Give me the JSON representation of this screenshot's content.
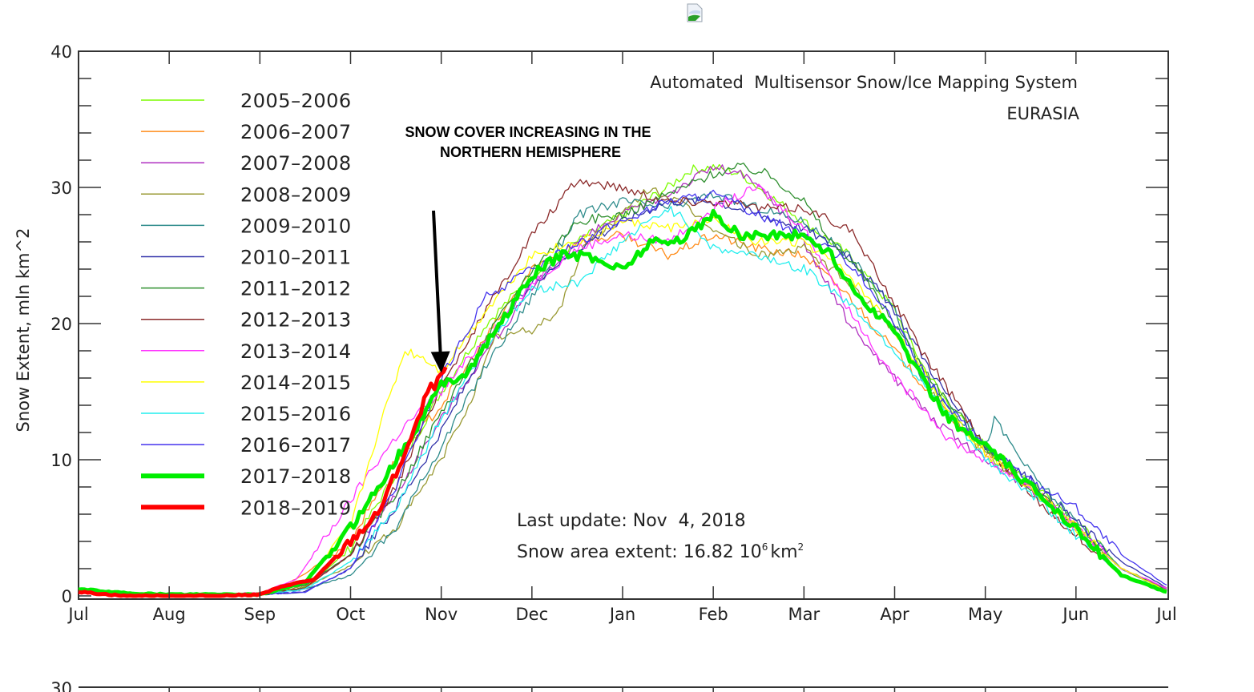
{
  "header": {
    "broken_image_icon": "broken-image-icon"
  },
  "chart_data": {
    "type": "line",
    "title": "Automated  Multisensor Snow/Ice Mapping System",
    "subtitle": "EURASIA",
    "xlabel": "",
    "ylabel": "Snow Extent, mln km^2",
    "ylim": [
      0,
      40
    ],
    "yticks": [
      0,
      10,
      20,
      30,
      40
    ],
    "ytick_labels": [
      "0",
      "10",
      "20",
      "30",
      "40"
    ],
    "xlim": [
      0,
      12
    ],
    "x_units": "months since Jul 1",
    "xticks": [
      0,
      1,
      2,
      3,
      4,
      5,
      6,
      7,
      8,
      9,
      10,
      11,
      12
    ],
    "xtick_labels": [
      "Jul",
      "Aug",
      "Sep",
      "Oct",
      "Nov",
      "Dec",
      "Jan",
      "Feb",
      "Mar",
      "Apr",
      "May",
      "Jun",
      "Jul"
    ],
    "grid": false,
    "legend_position": "top-left",
    "annotation": {
      "text_line1": "SNOW COVER INCREASING IN THE",
      "text_line2": "NORTHERN HEMISPHERE",
      "arrow_target": [
        4.0,
        16.5
      ]
    },
    "info": {
      "last_update": "Last update: Nov  4, 2018",
      "extent_prefix": "Snow area extent: 16.82 10",
      "extent_exp": "6",
      "extent_unit": "km",
      "extent_unit_exp": "2"
    },
    "series": [
      {
        "name": "2005-2006",
        "color": "#7cfc00",
        "width": 1.3,
        "x": [
          0,
          1,
          2,
          2.5,
          3,
          3.5,
          4,
          4.5,
          5,
          5.5,
          6,
          6.5,
          6.75,
          7,
          7.3,
          7.6,
          8,
          8.5,
          9,
          9.3,
          9.6,
          10,
          10.5,
          11,
          11.5,
          12
        ],
        "y": [
          0.5,
          0.1,
          0.1,
          0.6,
          3.5,
          9,
          15,
          20,
          23.5,
          26,
          28,
          30,
          31.3,
          31.5,
          31,
          29.5,
          27.5,
          25,
          21,
          17,
          14,
          11,
          8.5,
          5.5,
          2,
          0.6
        ]
      },
      {
        "name": "2006-2007",
        "color": "#ff8c1a",
        "width": 1.3,
        "x": [
          0,
          1,
          2,
          2.4,
          3,
          3.5,
          4,
          4.5,
          5,
          5.5,
          6,
          6.5,
          7,
          7.5,
          8,
          8.5,
          9,
          9.5,
          10,
          10.5,
          11,
          11.5,
          12
        ],
        "y": [
          0.4,
          0.1,
          0.2,
          1.2,
          4,
          10,
          14,
          19,
          24,
          26,
          26.5,
          25,
          26.5,
          25.5,
          25,
          22,
          18,
          14,
          10.5,
          8,
          5,
          2,
          0.5
        ]
      },
      {
        "name": "2007-2008",
        "color": "#b030c0",
        "width": 1.3,
        "x": [
          0,
          1,
          2,
          2.5,
          3,
          3.5,
          4,
          4.5,
          5,
          5.5,
          6,
          6.5,
          7,
          7.3,
          7.6,
          8,
          8.5,
          9,
          9.5,
          10,
          10.5,
          11,
          11.5,
          12
        ],
        "y": [
          0.3,
          0.1,
          0.2,
          0.8,
          3,
          7.5,
          13,
          18,
          22.5,
          26,
          28,
          29.5,
          31.5,
          31,
          29.5,
          26,
          20,
          16,
          12.5,
          10,
          8,
          5,
          2,
          0.5
        ]
      },
      {
        "name": "2008-2009",
        "color": "#999933",
        "width": 1.3,
        "x": [
          0,
          1,
          2,
          2.5,
          3,
          3.5,
          4,
          4.3,
          4.6,
          5,
          5.3,
          5.6,
          6,
          6.3,
          6.6,
          7,
          7.5,
          8,
          8.5,
          9,
          9.5,
          10,
          10.5,
          11,
          11.5,
          12
        ],
        "y": [
          0.3,
          0.1,
          0.1,
          0.7,
          2.2,
          5,
          10,
          14,
          19,
          19.5,
          21,
          26,
          28,
          30,
          29,
          27,
          25,
          25.5,
          23,
          19.5,
          14,
          10.5,
          8,
          5,
          2,
          0.4
        ]
      },
      {
        "name": "2009-2010",
        "color": "#2e8b8b",
        "width": 1.3,
        "x": [
          0,
          1,
          2,
          2.5,
          3,
          3.5,
          4,
          4.5,
          5,
          5.5,
          6,
          6.5,
          7,
          7.5,
          8,
          8.5,
          9,
          9.3,
          9.6,
          10,
          10.1,
          10.5,
          11,
          11.5,
          12
        ],
        "y": [
          0.3,
          0.1,
          0.1,
          0.5,
          1.5,
          5,
          11,
          17,
          22,
          28,
          29,
          28.5,
          29.5,
          28.5,
          27.5,
          25,
          21,
          16,
          14,
          11,
          13,
          9,
          5.5,
          2,
          0.4
        ]
      },
      {
        "name": "2010-2011",
        "color": "#3333aa",
        "width": 1.3,
        "x": [
          0,
          1,
          2,
          2.5,
          3,
          3.5,
          4,
          4.5,
          5,
          5.5,
          6,
          6.5,
          7,
          7.5,
          8,
          8.5,
          9,
          9.5,
          10,
          10.5,
          11,
          11.5,
          12
        ],
        "y": [
          0.3,
          0.1,
          0.1,
          0.3,
          2,
          6.5,
          12,
          18.5,
          23,
          25.5,
          27.5,
          29,
          29,
          28,
          27,
          25,
          21,
          15.5,
          11,
          8.5,
          5.5,
          2.5,
          0.6
        ]
      },
      {
        "name": "2011-2012",
        "color": "#2f8f2f",
        "width": 1.3,
        "x": [
          0,
          1,
          2,
          2.5,
          3,
          3.5,
          4,
          4.5,
          5,
          5.5,
          6,
          6.5,
          7,
          7.3,
          7.6,
          8,
          8.3,
          8.6,
          9,
          9.5,
          10,
          10.5,
          11,
          11.5,
          12
        ],
        "y": [
          0.3,
          0.1,
          0.2,
          0.8,
          3,
          7.5,
          13.5,
          19,
          24,
          27.5,
          28,
          29.5,
          31,
          31.5,
          31,
          29,
          26,
          24,
          20,
          15,
          11,
          8,
          5,
          2,
          0.4
        ]
      },
      {
        "name": "2012-2013",
        "color": "#8b2a2a",
        "width": 1.3,
        "x": [
          0,
          1,
          2,
          2.5,
          3,
          3.5,
          4,
          4.5,
          5,
          5.5,
          6,
          6.5,
          7,
          7.5,
          8,
          8.5,
          9,
          9.3,
          9.6,
          10,
          10.5,
          11,
          11.5,
          12
        ],
        "y": [
          0.3,
          0.1,
          0.1,
          0.6,
          3,
          8,
          15.5,
          21,
          26.5,
          30.5,
          30,
          29,
          29,
          28.5,
          28.5,
          27,
          21.5,
          18,
          15,
          11,
          7.5,
          4.5,
          1.5,
          0.4
        ]
      },
      {
        "name": "2013-2014",
        "color": "#ff33ff",
        "width": 1.3,
        "x": [
          0,
          1,
          2,
          2.4,
          2.8,
          3.2,
          3.6,
          4,
          4.5,
          5,
          5.5,
          6,
          6.5,
          7,
          7.5,
          8,
          8.5,
          9,
          9.3,
          9.6,
          10,
          10.5,
          11,
          11.5,
          12
        ],
        "y": [
          0.3,
          0.1,
          0.2,
          1.2,
          5,
          9,
          12.5,
          15,
          19,
          23,
          25.5,
          26.5,
          26,
          28.5,
          30,
          27,
          21,
          16,
          14,
          11.5,
          10,
          8,
          5,
          2,
          0.6
        ]
      },
      {
        "name": "2014-2015",
        "color": "#ffff00",
        "width": 1.3,
        "x": [
          0,
          1,
          2,
          2.5,
          3,
          3.3,
          3.6,
          3.8,
          4,
          4.5,
          5,
          5.5,
          6,
          6.5,
          7,
          7.5,
          8,
          8.5,
          9,
          9.5,
          10,
          10.5,
          11,
          11.5,
          12
        ],
        "y": [
          0.3,
          0.1,
          0.2,
          1,
          5,
          12,
          18,
          17.5,
          16.5,
          21,
          25,
          26,
          27.5,
          27,
          27.5,
          26,
          26,
          23.5,
          19.5,
          14.5,
          10.5,
          8,
          5,
          2,
          0.4
        ]
      },
      {
        "name": "2015-2016",
        "color": "#22eeee",
        "width": 1.3,
        "x": [
          0,
          1,
          2,
          2.5,
          3,
          3.5,
          4,
          4.5,
          5,
          5.5,
          6,
          6.5,
          6.8,
          7,
          7.5,
          8,
          8.5,
          9,
          9.5,
          10,
          10.5,
          11,
          11.5,
          12
        ],
        "y": [
          0.3,
          0.1,
          0.1,
          0.5,
          2.5,
          6.5,
          13,
          18.5,
          22.5,
          23,
          26,
          28.5,
          27,
          25.5,
          25,
          24,
          21.5,
          18,
          14,
          10,
          7.5,
          4.5,
          1.5,
          0.3
        ]
      },
      {
        "name": "2016-2017",
        "color": "#4433ee",
        "width": 1.3,
        "x": [
          0,
          1,
          2,
          2.5,
          3,
          3.5,
          4,
          4.5,
          5,
          5.5,
          6,
          6.5,
          7,
          7.5,
          8,
          8.5,
          9,
          9.5,
          10,
          10.5,
          11,
          11.5,
          12
        ],
        "y": [
          0.3,
          0.1,
          0.1,
          0.3,
          2,
          8,
          16,
          22,
          24,
          26,
          27.5,
          29,
          29.5,
          28,
          26.5,
          24.5,
          20,
          14.5,
          11,
          8.5,
          6.5,
          3,
          0.8
        ]
      },
      {
        "name": "2017-2018",
        "color": "#00ee00",
        "width": 5,
        "x": [
          0,
          0.5,
          1,
          1.5,
          2,
          2.5,
          3,
          3.3,
          3.6,
          4,
          4.3,
          4.6,
          5,
          5.3,
          5.6,
          6,
          6.3,
          6.6,
          7,
          7.3,
          7.6,
          8,
          8.3,
          8.6,
          9,
          9.3,
          9.6,
          10,
          10.5,
          11,
          11.5,
          12
        ],
        "y": [
          0.5,
          0.2,
          0.1,
          0.1,
          0.1,
          1,
          5,
          8,
          11,
          15.5,
          16.5,
          19.5,
          23.5,
          25,
          25,
          24,
          26,
          26,
          28,
          26.5,
          26.5,
          26.5,
          25,
          22,
          19.5,
          16,
          13,
          11,
          8,
          5,
          1.5,
          0.3
        ]
      },
      {
        "name": "2018-2019",
        "color": "#ff0000",
        "width": 5,
        "x": [
          0,
          0.5,
          1,
          1.5,
          2,
          2.3,
          2.6,
          3,
          3.3,
          3.5,
          3.7,
          3.85,
          4,
          4.05
        ],
        "y": [
          0.3,
          0.0,
          0.0,
          0.0,
          0.1,
          0.8,
          1.2,
          4,
          6,
          9,
          12,
          15,
          16,
          16.8
        ]
      }
    ]
  }
}
